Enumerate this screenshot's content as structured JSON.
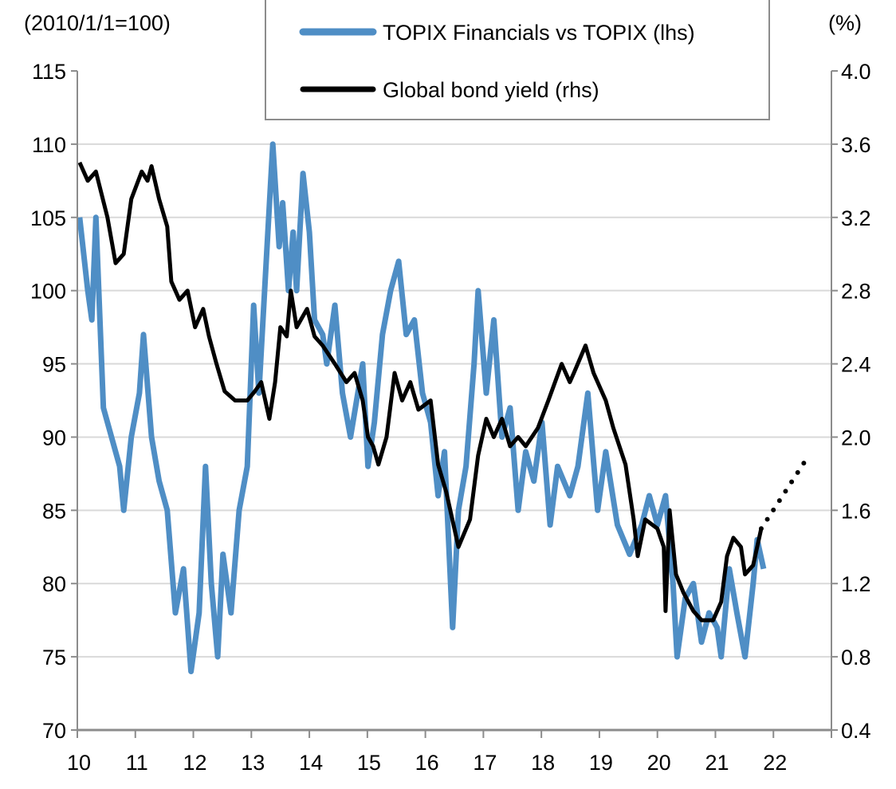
{
  "chart_data": {
    "type": "line",
    "left_axis_unit": "(2010/1/1=100)",
    "right_axis_unit": "(%)",
    "ylim_left": [
      70,
      115
    ],
    "ylim_right": [
      0.4,
      4.0
    ],
    "xlim": [
      2010,
      2023
    ],
    "x_tick_labels": [
      "10",
      "11",
      "12",
      "13",
      "14",
      "15",
      "16",
      "17",
      "18",
      "19",
      "20",
      "21",
      "22"
    ],
    "y_left_ticks": [
      "70",
      "75",
      "80",
      "85",
      "90",
      "95",
      "100",
      "105",
      "110",
      "115"
    ],
    "y_right_ticks": [
      "0.4",
      "0.8",
      "1.2",
      "1.6",
      "2.0",
      "2.4",
      "2.8",
      "3.2",
      "3.6",
      "4.0"
    ],
    "grid": true,
    "legend_placement": "top-center",
    "colors": {
      "financials": "#4f8ec5",
      "yield": "#000000",
      "grid": "#d9d9d9",
      "axis": "#8c8c8c"
    },
    "series": [
      {
        "name": "TOPIX Financials vs TOPIX (lhs)",
        "axis": "left",
        "x": [
          2010.04,
          2010.18,
          2010.25,
          2010.32,
          2010.45,
          2010.73,
          2010.8,
          2010.93,
          2011.07,
          2011.14,
          2011.28,
          2011.41,
          2011.55,
          2011.69,
          2011.83,
          2011.96,
          2012.1,
          2012.21,
          2012.31,
          2012.42,
          2012.51,
          2012.65,
          2012.79,
          2012.93,
          2013.04,
          2013.13,
          2013.2,
          2013.27,
          2013.37,
          2013.48,
          2013.54,
          2013.64,
          2013.72,
          2013.78,
          2013.89,
          2014.0,
          2014.09,
          2014.23,
          2014.3,
          2014.44,
          2014.57,
          2014.71,
          2014.92,
          2015.01,
          2015.12,
          2015.26,
          2015.4,
          2015.54,
          2015.67,
          2015.81,
          2015.95,
          2016.09,
          2016.22,
          2016.33,
          2016.47,
          2016.57,
          2016.7,
          2016.84,
          2016.91,
          2017.05,
          2017.18,
          2017.32,
          2017.46,
          2017.6,
          2017.73,
          2017.87,
          2018.01,
          2018.15,
          2018.28,
          2018.49,
          2018.63,
          2018.8,
          2018.97,
          2019.11,
          2019.31,
          2019.52,
          2019.73,
          2019.86,
          2020.0,
          2020.14,
          2020.27,
          2020.34,
          2020.48,
          2020.62,
          2020.76,
          2020.89,
          2021.03,
          2021.1,
          2021.24,
          2021.37,
          2021.51,
          2021.65,
          2021.72,
          2021.83
        ],
        "values": [
          105,
          100,
          98,
          105,
          92,
          88,
          85,
          90,
          93,
          97,
          90,
          87,
          85,
          78,
          81,
          74,
          78,
          88,
          80,
          75,
          82,
          78,
          85,
          88,
          99,
          93,
          98,
          103,
          110,
          103,
          106,
          100,
          104,
          100,
          108,
          104,
          98,
          97,
          95,
          99,
          93,
          90,
          95,
          88,
          91,
          97,
          100,
          102,
          97,
          98,
          93,
          91,
          86,
          89,
          77,
          85,
          88,
          95,
          100,
          93,
          98,
          90,
          92,
          85,
          89,
          87,
          91,
          84,
          88,
          86,
          88,
          93,
          85,
          89,
          84,
          82,
          84,
          86,
          84,
          86,
          80,
          75,
          79,
          80,
          76,
          78,
          77,
          75,
          81,
          78,
          75,
          80,
          83,
          81
        ]
      },
      {
        "name": "Global bond yield (rhs)",
        "axis": "right",
        "x": [
          2010.04,
          2010.18,
          2010.32,
          2010.52,
          2010.66,
          2010.8,
          2010.93,
          2011.11,
          2011.21,
          2011.28,
          2011.41,
          2011.55,
          2011.62,
          2011.76,
          2011.9,
          2012.03,
          2012.17,
          2012.27,
          2012.4,
          2012.54,
          2012.72,
          2012.93,
          2013.06,
          2013.17,
          2013.31,
          2013.41,
          2013.5,
          2013.61,
          2013.68,
          2013.78,
          2013.96,
          2014.09,
          2014.23,
          2014.44,
          2014.64,
          2014.78,
          2014.92,
          2015.01,
          2015.1,
          2015.19,
          2015.33,
          2015.47,
          2015.6,
          2015.74,
          2015.88,
          2016.09,
          2016.22,
          2016.36,
          2016.5,
          2016.57,
          2016.77,
          2016.91,
          2017.05,
          2017.18,
          2017.32,
          2017.46,
          2017.6,
          2017.73,
          2017.94,
          2018.12,
          2018.35,
          2018.49,
          2018.56,
          2018.76,
          2018.9,
          2019.11,
          2019.24,
          2019.45,
          2019.59,
          2019.66,
          2019.79,
          2020.0,
          2020.11,
          2020.14,
          2020.21,
          2020.32,
          2020.45,
          2020.62,
          2020.76,
          2020.96,
          2021.1,
          2021.2,
          2021.31,
          2021.44,
          2021.51,
          2021.65,
          2021.79
        ],
        "values": [
          3.5,
          3.4,
          3.45,
          3.2,
          2.95,
          3.0,
          3.3,
          3.45,
          3.4,
          3.48,
          3.3,
          3.15,
          2.85,
          2.75,
          2.8,
          2.6,
          2.7,
          2.55,
          2.4,
          2.25,
          2.2,
          2.2,
          2.25,
          2.3,
          2.1,
          2.3,
          2.6,
          2.55,
          2.8,
          2.6,
          2.7,
          2.55,
          2.5,
          2.4,
          2.3,
          2.35,
          2.2,
          2.0,
          1.95,
          1.85,
          2.0,
          2.35,
          2.2,
          2.3,
          2.15,
          2.2,
          1.85,
          1.7,
          1.5,
          1.4,
          1.55,
          1.9,
          2.1,
          2.0,
          2.1,
          1.95,
          2.0,
          1.95,
          2.05,
          2.2,
          2.4,
          2.3,
          2.35,
          2.5,
          2.35,
          2.2,
          2.05,
          1.85,
          1.55,
          1.35,
          1.55,
          1.5,
          1.4,
          1.05,
          1.6,
          1.25,
          1.15,
          1.05,
          1.0,
          1.0,
          1.1,
          1.35,
          1.45,
          1.4,
          1.25,
          1.3,
          1.5
        ],
        "projection": {
          "x": [
            2021.79,
            2022.61
          ],
          "values": [
            1.5,
            1.9
          ],
          "style": "dotted"
        }
      }
    ]
  }
}
